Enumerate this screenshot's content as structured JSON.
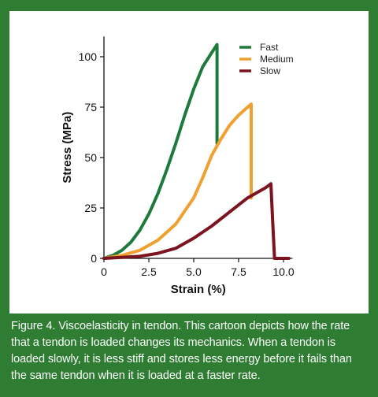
{
  "chart_data": {
    "type": "line",
    "xlabel": "Strain (%)",
    "ylabel": "Stress (MPa)",
    "xlim": [
      0,
      10.5
    ],
    "ylim": [
      0,
      110
    ],
    "x_ticks": [
      0,
      2.5,
      5.0,
      7.5,
      10.0
    ],
    "x_tick_labels": [
      "0",
      "2.5",
      "5.0",
      "7.5",
      "10.0"
    ],
    "y_ticks": [
      0,
      25,
      50,
      75,
      100
    ],
    "y_tick_labels": [
      "0",
      "25",
      "50",
      "75",
      "100"
    ],
    "legend_position": "top-right",
    "grid": false,
    "series": [
      {
        "name": "Fast",
        "color": "#1e7a3c",
        "x": [
          0,
          0.5,
          1.0,
          1.5,
          2.0,
          2.5,
          3.0,
          3.5,
          4.0,
          4.5,
          5.0,
          5.5,
          6.0,
          6.3,
          6.3,
          6.3
        ],
        "y": [
          0,
          1.5,
          4,
          8,
          14,
          22,
          32,
          44,
          57,
          71,
          84,
          95,
          102,
          106,
          80,
          57
        ]
      },
      {
        "name": "Medium",
        "color": "#f0a030",
        "x": [
          0,
          1.0,
          2.0,
          3.0,
          4.0,
          5.0,
          5.5,
          6.0,
          6.5,
          7.0,
          7.5,
          8.0,
          8.2,
          8.2,
          8.2
        ],
        "y": [
          0,
          1.5,
          4,
          9,
          17,
          30,
          40,
          51,
          59,
          66,
          71,
          75,
          76.5,
          50,
          30
        ]
      },
      {
        "name": "Slow",
        "color": "#7b1420",
        "x": [
          0,
          2.0,
          3.0,
          4.0,
          5.0,
          6.0,
          7.0,
          8.0,
          9.0,
          9.3,
          9.4,
          9.5,
          10.0,
          10.3
        ],
        "y": [
          0,
          1,
          2.5,
          5,
          10,
          16,
          23,
          30,
          35,
          37,
          18,
          0,
          0,
          0
        ]
      }
    ]
  },
  "caption": "Figure 4. Viscoelasticity in tendon. This cartoon depicts how the rate that a tendon is loaded changes its mechanics. When a tendon is loaded slowly, it is less stiff and stores less energy before it fails than the same tendon when it is loaded at a faster rate."
}
